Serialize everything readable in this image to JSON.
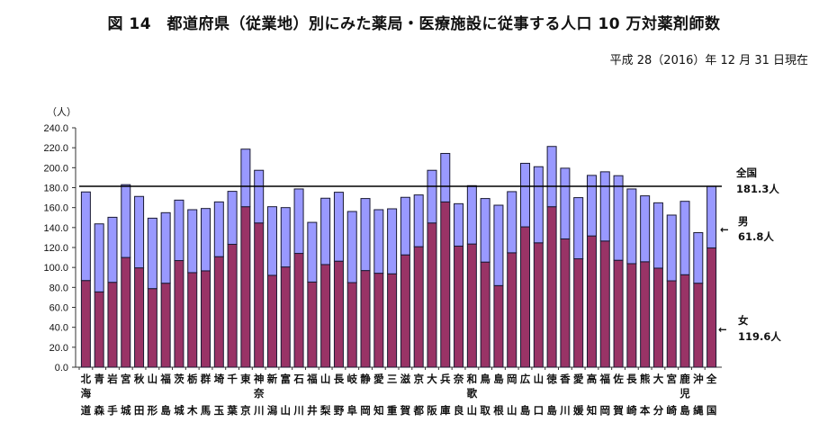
{
  "chart_data": {
    "type": "bar",
    "stacked": true,
    "title": "図 14　都道府県（従業地）別にみた薬局・医療施設に従事する人口 10 万対薬剤師数",
    "subtitle": "平成 28（2016）年 12 月 31 日現在",
    "ylabel": "（人）",
    "ylim": [
      0,
      240
    ],
    "yticks": [
      "0.0",
      "20.0",
      "40.0",
      "60.0",
      "80.0",
      "100.0",
      "120.0",
      "140.0",
      "160.0",
      "180.0",
      "200.0",
      "220.0",
      "240.0"
    ],
    "categories": [
      "北海道",
      "青森",
      "岩手",
      "宮城",
      "秋田",
      "山形",
      "福島",
      "茨城",
      "栃木",
      "群馬",
      "埼玉",
      "千葉",
      "東京",
      "神奈川",
      "新潟",
      "富山",
      "石川",
      "福井",
      "山梨",
      "長野",
      "岐阜",
      "静岡",
      "愛知",
      "三重",
      "滋賀",
      "京都",
      "大阪",
      "兵庫",
      "奈良",
      "和歌山",
      "鳥取",
      "島根",
      "岡山",
      "広島",
      "山口",
      "徳島",
      "香川",
      "愛媛",
      "高知",
      "福岡",
      "佐賀",
      "長崎",
      "熊本",
      "大分",
      "宮崎",
      "鹿児島",
      "沖縄",
      "全国"
    ],
    "series": [
      {
        "name": "女",
        "color": "#993366",
        "values": [
          86.9,
          75.5,
          85.1,
          110.0,
          99.6,
          78.8,
          84.2,
          106.9,
          94.8,
          96.6,
          110.8,
          123.2,
          160.9,
          144.6,
          92.1,
          100.5,
          114.1,
          85.4,
          102.9,
          106.3,
          84.8,
          96.9,
          94.2,
          93.6,
          112.6,
          120.8,
          144.6,
          165.7,
          121.4,
          123.5,
          105.4,
          81.8,
          114.7,
          140.7,
          124.7,
          160.9,
          128.6,
          108.7,
          131.6,
          126.5,
          107.2,
          103.8,
          105.7,
          99.3,
          86.6,
          92.7,
          84.2,
          119.6
        ]
      },
      {
        "name": "男",
        "color": "#9999ff",
        "values": [
          88.8,
          68.2,
          65.2,
          73.0,
          71.6,
          70.6,
          70.7,
          60.6,
          63.1,
          62.5,
          54.9,
          53.1,
          57.7,
          52.8,
          68.8,
          59.5,
          64.6,
          59.8,
          66.5,
          69.1,
          71.3,
          72.2,
          63.7,
          65.2,
          57.7,
          51.9,
          52.8,
          48.6,
          42.5,
          58.5,
          63.7,
          80.6,
          61.3,
          63.7,
          76.3,
          60.4,
          70.9,
          61.3,
          60.7,
          69.4,
          84.8,
          74.9,
          66.1,
          65.5,
          65.9,
          73.6,
          50.7,
          61.8
        ]
      }
    ],
    "reference_line": {
      "label": "全国",
      "value": 181.3,
      "value_label": "181.3人"
    },
    "annotations": [
      {
        "label": "男",
        "value_label": "61.8人"
      },
      {
        "label": "女",
        "value_label": "119.6人"
      }
    ],
    "grid": false,
    "legend": "right (annotations)"
  }
}
